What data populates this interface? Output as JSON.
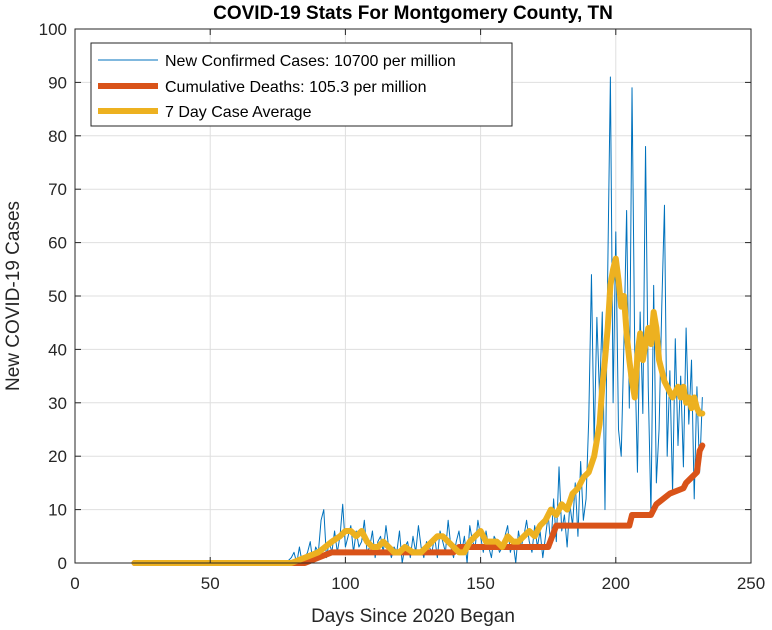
{
  "chart_data": {
    "type": "line",
    "title": "COVID-19 Stats For Montgomery County, TN",
    "xlabel": "Days Since 2020 Began",
    "ylabel": "New COVID-19 Cases",
    "xlim": [
      0,
      250
    ],
    "ylim": [
      0,
      100
    ],
    "xticks": [
      0,
      50,
      100,
      150,
      200,
      250
    ],
    "yticks": [
      0,
      10,
      20,
      30,
      40,
      50,
      60,
      70,
      80,
      90,
      100
    ],
    "grid": true,
    "legend_position": "top-left",
    "series": [
      {
        "name": "New Confirmed Cases: 10700 per million",
        "color": "#0072BD",
        "line_width": "thin",
        "x": [
          22,
          40,
          60,
          78,
          80,
          81,
          82,
          83,
          84,
          85,
          86,
          87,
          88,
          89,
          90,
          91,
          92,
          93,
          94,
          95,
          96,
          97,
          98,
          99,
          100,
          101,
          102,
          103,
          104,
          105,
          106,
          107,
          108,
          109,
          110,
          111,
          112,
          113,
          114,
          115,
          116,
          117,
          118,
          119,
          120,
          121,
          122,
          123,
          124,
          125,
          126,
          127,
          128,
          129,
          130,
          131,
          132,
          133,
          134,
          135,
          136,
          137,
          138,
          139,
          140,
          141,
          142,
          143,
          144,
          145,
          146,
          147,
          148,
          149,
          150,
          151,
          152,
          153,
          154,
          155,
          156,
          157,
          158,
          159,
          160,
          161,
          162,
          163,
          164,
          165,
          166,
          167,
          168,
          169,
          170,
          171,
          172,
          173,
          174,
          175,
          176,
          177,
          178,
          179,
          180,
          181,
          182,
          183,
          184,
          185,
          186,
          187,
          188,
          189,
          190,
          191,
          192,
          193,
          194,
          195,
          196,
          197,
          198,
          199,
          200,
          201,
          202,
          203,
          204,
          205,
          206,
          207,
          208,
          209,
          210,
          211,
          212,
          213,
          214,
          215,
          216,
          217,
          218,
          219,
          220,
          221,
          222,
          223,
          224,
          225,
          226,
          227,
          228,
          229,
          230,
          231,
          232
        ],
        "y": [
          0,
          0,
          0,
          0,
          1,
          2,
          0,
          3,
          0,
          1,
          2,
          4,
          0,
          3,
          2,
          8,
          10,
          1,
          4,
          2,
          6,
          2,
          5,
          11,
          3,
          5,
          7,
          2,
          6,
          3,
          4,
          8,
          2,
          3,
          6,
          1,
          4,
          5,
          2,
          7,
          3,
          1,
          3,
          2,
          6,
          0,
          3,
          4,
          1,
          5,
          2,
          7,
          3,
          1,
          4,
          3,
          2,
          5,
          1,
          6,
          4,
          2,
          8,
          3,
          1,
          4,
          6,
          2,
          5,
          0,
          7,
          4,
          3,
          8,
          5,
          2,
          6,
          3,
          1,
          5,
          4,
          2,
          3,
          5,
          7,
          2,
          4,
          0,
          6,
          3,
          5,
          8,
          4,
          2,
          7,
          3,
          6,
          1,
          5,
          9,
          3,
          12,
          4,
          18,
          6,
          9,
          3,
          11,
          7,
          15,
          5,
          19,
          8,
          12,
          27,
          54,
          22,
          46,
          31,
          47,
          10,
          54,
          91,
          30,
          62,
          25,
          20,
          41,
          66,
          29,
          89,
          40,
          17,
          47,
          28,
          78,
          33,
          9,
          52,
          15,
          25,
          48,
          67,
          20,
          36,
          13,
          42,
          22,
          35,
          18,
          44,
          26,
          38,
          12,
          33,
          17,
          31
        ]
      },
      {
        "name": "Cumulative Deaths: 105.3 per million",
        "color": "#D95319",
        "line_width": "thick",
        "x": [
          22,
          85,
          95,
          140,
          142,
          175,
          178,
          205,
          206,
          213,
          215,
          220,
          225,
          226,
          228,
          230,
          231,
          232
        ],
        "y": [
          0,
          0,
          2,
          2,
          3,
          3,
          7,
          7,
          9,
          9,
          11,
          13,
          14,
          15,
          16,
          17,
          21,
          22
        ]
      },
      {
        "name": "7 Day Case Average",
        "color": "#EDB120",
        "line_width": "thick",
        "x": [
          22,
          80,
          85,
          90,
          95,
          98,
          100,
          102,
          104,
          106,
          108,
          110,
          112,
          114,
          116,
          118,
          120,
          122,
          125,
          128,
          130,
          132,
          134,
          136,
          138,
          140,
          142,
          144,
          146,
          148,
          150,
          152,
          154,
          156,
          158,
          160,
          162,
          164,
          166,
          168,
          170,
          172,
          174,
          176,
          178,
          180,
          182,
          184,
          186,
          188,
          190,
          192,
          194,
          195,
          196,
          197,
          198,
          199,
          200,
          201,
          202,
          203,
          204,
          205,
          206,
          207,
          208,
          209,
          210,
          211,
          212,
          213,
          214,
          215,
          216,
          217,
          218,
          219,
          220,
          221,
          222,
          223,
          224,
          225,
          226,
          227,
          228,
          229,
          230,
          231,
          232
        ],
        "y": [
          0,
          0,
          1,
          2,
          4,
          5,
          6,
          6,
          5,
          6,
          4,
          3,
          3,
          4,
          3,
          2,
          2,
          3,
          2,
          2,
          3,
          4,
          5,
          5,
          4,
          3,
          2,
          2,
          4,
          5,
          6,
          4,
          4,
          4,
          3,
          5,
          4,
          4,
          5,
          6,
          5,
          7,
          8,
          10,
          9,
          11,
          10,
          13,
          14,
          16,
          17,
          20,
          26,
          33,
          38,
          44,
          52,
          55,
          57,
          53,
          48,
          50,
          43,
          38,
          34,
          31,
          39,
          43,
          38,
          41,
          44,
          41,
          47,
          44,
          38,
          36,
          34,
          33,
          32,
          31,
          32,
          33,
          31,
          33,
          30,
          31,
          29,
          31,
          29,
          28,
          28
        ]
      }
    ]
  }
}
